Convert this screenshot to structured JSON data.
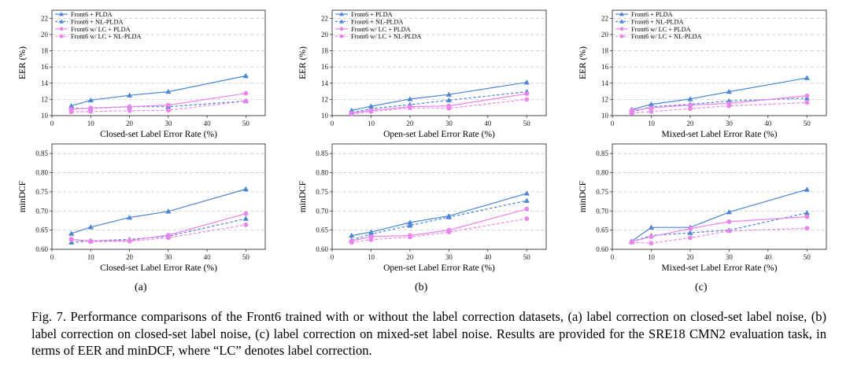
{
  "colors": {
    "plda": "#4a86d8",
    "lc": "#ee82ee",
    "grid": "#c8c8c8",
    "axis": "#333333"
  },
  "caption": "Fig. 7. Performance comparisons of the Front6 trained with or without the label correction datasets, (a) label correction on closed-set label noise, (b) label correction on closed-set label noise, (c) label correction on mixed-set label noise. Results are provided for the SRE18 CMN2 evaluation task, in terms of EER and minDCF, where “LC” denotes label correction.",
  "panel_labels": [
    "(a)",
    "(b)",
    "(c)"
  ],
  "chart_data": [
    {
      "type": "line",
      "panel": "(a)",
      "title": "",
      "xlabel": "Closed-set Label Error Rate (%)",
      "ylabel": "EER (%)",
      "xlim": [
        0,
        55
      ],
      "ylim": [
        10,
        23
      ],
      "xticks": [
        0,
        10,
        20,
        30,
        40,
        50
      ],
      "yticks": [
        10,
        12,
        14,
        16,
        18,
        20,
        22
      ],
      "legend_position": "top-left",
      "grid": "horizontal dashed",
      "x": [
        5,
        10,
        20,
        30,
        50
      ],
      "series": [
        {
          "name": "Front6 + PLDA",
          "values": [
            11.2,
            11.9,
            12.5,
            12.95,
            14.9
          ],
          "color": "#4a86d8",
          "dashed": false,
          "marker": "triangle"
        },
        {
          "name": "Front6 + NL-PLDA",
          "values": [
            10.9,
            10.9,
            11.1,
            11.1,
            11.8
          ],
          "color": "#4a86d8",
          "dashed": true,
          "marker": "triangle"
        },
        {
          "name": "Front6 w/ LC + PLDA",
          "values": [
            10.8,
            10.95,
            11.1,
            11.3,
            12.75
          ],
          "color": "#ee82ee",
          "dashed": false,
          "marker": "circle"
        },
        {
          "name": "Front6 w/ LC + NL-PLDA",
          "values": [
            10.45,
            10.5,
            10.6,
            10.65,
            11.8
          ],
          "color": "#ee82ee",
          "dashed": true,
          "marker": "circle"
        }
      ]
    },
    {
      "type": "line",
      "panel": "(b)",
      "title": "",
      "xlabel": "Open-set Label Error Rate (%)",
      "ylabel": "EER (%)",
      "xlim": [
        0,
        55
      ],
      "ylim": [
        10,
        23
      ],
      "xticks": [
        0,
        10,
        20,
        30,
        40,
        50
      ],
      "yticks": [
        10,
        12,
        14,
        16,
        18,
        20,
        22
      ],
      "legend_position": "top-left",
      "grid": "horizontal dashed",
      "x": [
        5,
        10,
        20,
        30,
        50
      ],
      "series": [
        {
          "name": "Front6 + PLDA",
          "values": [
            10.65,
            11.15,
            12.05,
            12.6,
            14.1
          ],
          "color": "#4a86d8",
          "dashed": false,
          "marker": "triangle"
        },
        {
          "name": "Front6 + NL-PLDA",
          "values": [
            10.35,
            10.85,
            11.35,
            11.9,
            12.95
          ],
          "color": "#4a86d8",
          "dashed": true,
          "marker": "triangle"
        },
        {
          "name": "Front6 w/ LC + PLDA",
          "values": [
            10.3,
            10.65,
            11.1,
            11.2,
            12.7
          ],
          "color": "#ee82ee",
          "dashed": false,
          "marker": "circle"
        },
        {
          "name": "Front6 w/ LC + NL-PLDA",
          "values": [
            10.2,
            10.5,
            10.95,
            10.9,
            12.0
          ],
          "color": "#ee82ee",
          "dashed": true,
          "marker": "circle"
        }
      ]
    },
    {
      "type": "line",
      "panel": "(c)",
      "title": "",
      "xlabel": "Mixed-set Label Error Rate (%)",
      "ylabel": "EER (%)",
      "xlim": [
        0,
        55
      ],
      "ylim": [
        10,
        23
      ],
      "xticks": [
        0,
        10,
        20,
        30,
        40,
        50
      ],
      "yticks": [
        10,
        12,
        14,
        16,
        18,
        20,
        22
      ],
      "legend_position": "top-left",
      "grid": "horizontal dashed",
      "x": [
        5,
        10,
        20,
        30,
        50
      ],
      "series": [
        {
          "name": "Front6 + PLDA",
          "values": [
            10.75,
            11.4,
            12.05,
            12.95,
            14.65
          ],
          "color": "#4a86d8",
          "dashed": false,
          "marker": "triangle"
        },
        {
          "name": "Front6 + NL-PLDA",
          "values": [
            10.45,
            11.1,
            11.4,
            11.8,
            12.15
          ],
          "color": "#4a86d8",
          "dashed": true,
          "marker": "triangle"
        },
        {
          "name": "Front6 w/ LC + PLDA",
          "values": [
            10.65,
            10.95,
            11.3,
            11.5,
            12.45
          ],
          "color": "#ee82ee",
          "dashed": false,
          "marker": "circle"
        },
        {
          "name": "Front6 w/ LC + NL-PLDA",
          "values": [
            10.3,
            10.5,
            10.85,
            11.2,
            11.6
          ],
          "color": "#ee82ee",
          "dashed": true,
          "marker": "circle"
        }
      ]
    },
    {
      "type": "line",
      "panel": "(a)",
      "title": "",
      "xlabel": "Closed-set Label Error Rate (%)",
      "ylabel": "minDCF",
      "xlim": [
        0,
        55
      ],
      "ylim": [
        0.6,
        0.875
      ],
      "xticks": [
        0,
        10,
        20,
        30,
        40,
        50
      ],
      "yticks": [
        0.6,
        0.65,
        0.7,
        0.75,
        0.8,
        0.85
      ],
      "grid": "horizontal dashed",
      "x": [
        5,
        10,
        20,
        30,
        50
      ],
      "series": [
        {
          "name": "Front6 + PLDA",
          "values": [
            0.641,
            0.658,
            0.683,
            0.699,
            0.757
          ],
          "color": "#4a86d8",
          "dashed": false,
          "marker": "triangle"
        },
        {
          "name": "Front6 + NL-PLDA",
          "values": [
            0.618,
            0.622,
            0.626,
            0.634,
            0.68
          ],
          "color": "#4a86d8",
          "dashed": true,
          "marker": "triangle"
        },
        {
          "name": "Front6 w/ LC + PLDA",
          "values": [
            0.625,
            0.622,
            0.623,
            0.637,
            0.693
          ],
          "color": "#ee82ee",
          "dashed": false,
          "marker": "circle"
        },
        {
          "name": "Front6 w/ LC + NL-PLDA",
          "values": [
            0.627,
            0.62,
            0.621,
            0.63,
            0.664
          ],
          "color": "#ee82ee",
          "dashed": true,
          "marker": "circle"
        }
      ]
    },
    {
      "type": "line",
      "panel": "(b)",
      "title": "",
      "xlabel": "Open-set Label Error Rate (%)",
      "ylabel": "minDCF",
      "xlim": [
        0,
        55
      ],
      "ylim": [
        0.6,
        0.875
      ],
      "xticks": [
        0,
        10,
        20,
        30,
        40,
        50
      ],
      "yticks": [
        0.6,
        0.65,
        0.7,
        0.75,
        0.8,
        0.85
      ],
      "grid": "horizontal dashed",
      "x": [
        5,
        10,
        20,
        30,
        50
      ],
      "series": [
        {
          "name": "Front6 + PLDA",
          "values": [
            0.636,
            0.645,
            0.67,
            0.687,
            0.746
          ],
          "color": "#4a86d8",
          "dashed": false,
          "marker": "triangle"
        },
        {
          "name": "Front6 + NL-PLDA",
          "values": [
            0.624,
            0.64,
            0.662,
            0.684,
            0.727
          ],
          "color": "#4a86d8",
          "dashed": true,
          "marker": "triangle"
        },
        {
          "name": "Front6 w/ LC + PLDA",
          "values": [
            0.622,
            0.633,
            0.636,
            0.65,
            0.705
          ],
          "color": "#ee82ee",
          "dashed": false,
          "marker": "circle"
        },
        {
          "name": "Front6 w/ LC + NL-PLDA",
          "values": [
            0.618,
            0.625,
            0.632,
            0.645,
            0.68
          ],
          "color": "#ee82ee",
          "dashed": true,
          "marker": "circle"
        }
      ]
    },
    {
      "type": "line",
      "panel": "(c)",
      "title": "",
      "xlabel": "Mixed-set Label Error Rate (%)",
      "ylabel": "minDCF",
      "xlim": [
        0,
        55
      ],
      "ylim": [
        0.6,
        0.875
      ],
      "xticks": [
        0,
        10,
        20,
        30,
        40,
        50
      ],
      "yticks": [
        0.6,
        0.65,
        0.7,
        0.75,
        0.8,
        0.85
      ],
      "grid": "horizontal dashed",
      "x": [
        5,
        10,
        20,
        30,
        50
      ],
      "series": [
        {
          "name": "Front6 + PLDA",
          "values": [
            0.621,
            0.657,
            0.657,
            0.697,
            0.756
          ],
          "color": "#4a86d8",
          "dashed": false,
          "marker": "triangle"
        },
        {
          "name": "Front6 + NL-PLDA",
          "values": [
            0.62,
            0.636,
            0.643,
            0.65,
            0.695
          ],
          "color": "#4a86d8",
          "dashed": true,
          "marker": "triangle"
        },
        {
          "name": "Front6 w/ LC + PLDA",
          "values": [
            0.62,
            0.633,
            0.654,
            0.672,
            0.685
          ],
          "color": "#ee82ee",
          "dashed": false,
          "marker": "circle"
        },
        {
          "name": "Front6 w/ LC + NL-PLDA",
          "values": [
            0.618,
            0.616,
            0.63,
            0.648,
            0.655
          ],
          "color": "#ee82ee",
          "dashed": true,
          "marker": "circle"
        }
      ]
    }
  ]
}
